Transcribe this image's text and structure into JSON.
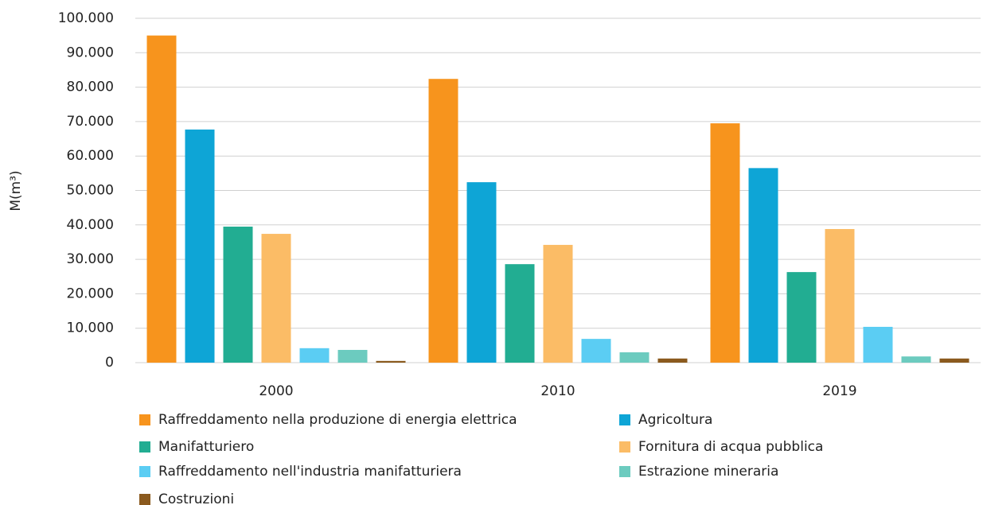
{
  "chart_data": {
    "type": "bar",
    "y_label": "M(m³)",
    "categories": [
      "2000",
      "2010",
      "2019"
    ],
    "series": [
      {
        "name": "Raffreddamento nella produzione di energia elettrica",
        "color": "#f7941d",
        "values": [
          95000,
          82400,
          69500
        ]
      },
      {
        "name": "Agricoltura",
        "color": "#0ea5d6",
        "values": [
          67700,
          52400,
          56500
        ]
      },
      {
        "name": "Manifatturiero",
        "color": "#22ad92",
        "values": [
          39500,
          28600,
          26300
        ]
      },
      {
        "name": "Fornitura di acqua pubblica",
        "color": "#fbbc66",
        "values": [
          37400,
          34200,
          38800
        ]
      },
      {
        "name": "Raffreddamento nell'industria manifatturiera",
        "color": "#5bcdf3",
        "values": [
          4200,
          6900,
          10400
        ]
      },
      {
        "name": "Estrazione mineraria",
        "color": "#6ccbbf",
        "values": [
          3700,
          3000,
          1800
        ]
      },
      {
        "name": "Costruzioni",
        "color": "#8b5a1e",
        "values": [
          500,
          1200,
          1200
        ]
      }
    ],
    "ylim": [
      0,
      100000
    ],
    "yticks": [
      0,
      {
        "value": 10000,
        "label": "10.000"
      },
      {
        "value": 20000,
        "label": "20.000"
      },
      {
        "value": 30000,
        "label": "30.000"
      },
      {
        "value": 40000,
        "label": "40.000"
      },
      {
        "value": 50000,
        "label": "50.000"
      },
      {
        "value": 60000,
        "label": "60.000"
      },
      {
        "value": 70000,
        "label": "70.000"
      },
      {
        "value": 80000,
        "label": "80.000"
      },
      {
        "value": 90000,
        "label": "90.000"
      },
      {
        "value": 100000,
        "label": "100.000"
      }
    ],
    "grid": true,
    "legend": "bottom"
  }
}
